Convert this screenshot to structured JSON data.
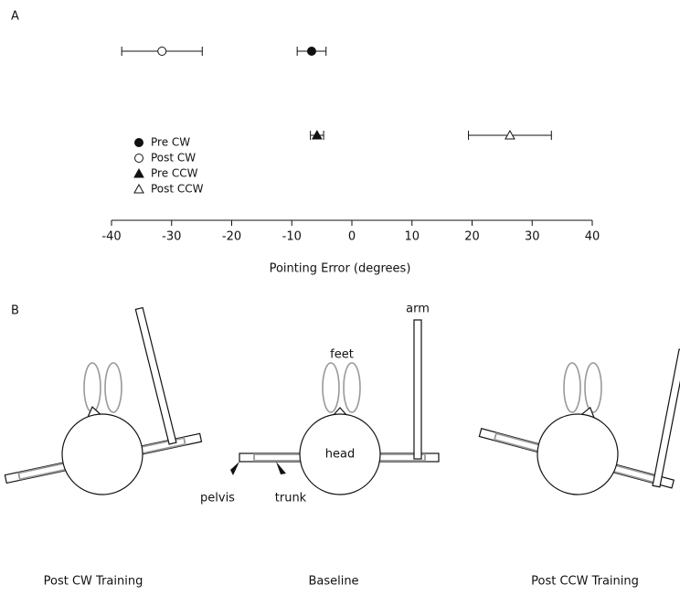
{
  "panels": {
    "a": "A",
    "b": "B"
  },
  "chart_data": {
    "type": "errorbar-scatter",
    "xlabel": "Pointing Error (degrees)",
    "xlim": [
      -40,
      40
    ],
    "xticks": [
      -40,
      -30,
      -20,
      -10,
      0,
      10,
      20,
      30,
      40
    ],
    "series": [
      {
        "name": "Pre CW",
        "color": "#111111",
        "marker": "circle",
        "filled": true,
        "values": [
          -6.7
        ],
        "errors": [
          2.4
        ]
      },
      {
        "name": "Post CW",
        "color": "#111111",
        "marker": "circle",
        "filled": false,
        "values": [
          -31.6
        ],
        "errors": [
          6.7
        ]
      },
      {
        "name": "Pre CCW",
        "color": "#111111",
        "marker": "triangle",
        "filled": true,
        "values": [
          -5.8
        ],
        "errors": [
          1.1
        ]
      },
      {
        "name": "Post CCW",
        "color": "#111111",
        "marker": "triangle",
        "filled": false,
        "values": [
          26.3
        ],
        "errors": [
          6.9
        ]
      }
    ]
  },
  "diagram": {
    "labels": {
      "arm": "arm",
      "feet": "feet",
      "head": "head",
      "pelvis": "pelvis",
      "trunk": "trunk"
    },
    "captions": [
      "Post CW Training",
      "Baseline",
      "Post CCW Training"
    ]
  }
}
